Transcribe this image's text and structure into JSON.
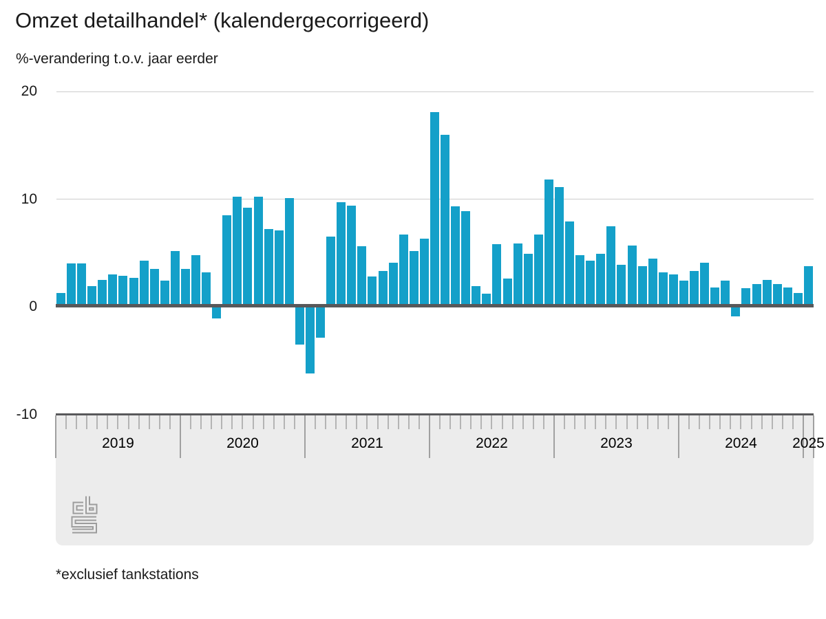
{
  "header": {
    "title": "Omzet detailhandel* (kalendergecorrigeerd)",
    "subtitle": "%-verandering t.o.v. jaar eerder"
  },
  "chart_data": {
    "type": "bar",
    "title": "Omzet detailhandel* (kalendergecorrigeerd)",
    "ylabel": "%-verandering t.o.v. jaar eerder",
    "xlabel": "",
    "legend": "none",
    "grid": "horizontal",
    "ylim": [
      -10,
      20
    ],
    "yticks": [
      20,
      10,
      0,
      -10
    ],
    "year_labels": [
      "2019",
      "2020",
      "2021",
      "2022",
      "2023",
      "2024",
      "2025"
    ],
    "x": [
      "2019-01",
      "2019-02",
      "2019-03",
      "2019-04",
      "2019-05",
      "2019-06",
      "2019-07",
      "2019-08",
      "2019-09",
      "2019-10",
      "2019-11",
      "2019-12",
      "2020-01",
      "2020-02",
      "2020-03",
      "2020-04",
      "2020-05",
      "2020-06",
      "2020-07",
      "2020-08",
      "2020-09",
      "2020-10",
      "2020-11",
      "2020-12",
      "2021-01",
      "2021-02",
      "2021-03",
      "2021-04",
      "2021-05",
      "2021-06",
      "2021-07",
      "2021-08",
      "2021-09",
      "2021-10",
      "2021-11",
      "2021-12",
      "2022-01",
      "2022-02",
      "2022-03",
      "2022-04",
      "2022-05",
      "2022-06",
      "2022-07",
      "2022-08",
      "2022-09",
      "2022-10",
      "2022-11",
      "2022-12",
      "2023-01",
      "2023-02",
      "2023-03",
      "2023-04",
      "2023-05",
      "2023-06",
      "2023-07",
      "2023-08",
      "2023-09",
      "2023-10",
      "2023-11",
      "2023-12",
      "2024-01",
      "2024-02",
      "2024-03",
      "2024-04",
      "2024-05",
      "2024-06",
      "2024-07",
      "2024-08",
      "2024-09",
      "2024-10",
      "2024-11",
      "2024-12",
      "2025-01"
    ],
    "values": [
      1.3,
      4.0,
      4.0,
      1.9,
      2.5,
      3.0,
      2.9,
      2.7,
      4.3,
      3.5,
      2.4,
      5.2,
      3.5,
      4.8,
      3.2,
      -1.1,
      8.5,
      10.2,
      9.2,
      10.2,
      7.2,
      7.1,
      10.1,
      -3.5,
      -6.2,
      -2.9,
      6.5,
      9.7,
      9.4,
      5.6,
      2.8,
      3.3,
      4.1,
      6.7,
      5.2,
      6.3,
      18.1,
      16.0,
      9.3,
      8.9,
      1.9,
      1.2,
      5.8,
      2.6,
      5.9,
      4.9,
      6.7,
      11.8,
      11.1,
      7.9,
      4.8,
      4.3,
      4.9,
      7.5,
      3.9,
      5.7,
      3.8,
      4.5,
      3.2,
      3.0,
      2.4,
      3.3,
      4.1,
      1.8,
      2.4,
      -0.9,
      1.7,
      2.1,
      2.5,
      2.1,
      1.8,
      1.3,
      3.8
    ]
  },
  "footer": {
    "footnote": "*exclusief tankstations",
    "logo": "cbs-logo"
  },
  "colors": {
    "bar": "#14a0c9",
    "zero_line": "#58585a",
    "gridline": "#cccccc",
    "band_bg": "#ececec",
    "tick_month": "#b4b4b4",
    "tick_year": "#a0a0a0",
    "logo": "#9c9c9c",
    "text": "#1a1a1a"
  }
}
